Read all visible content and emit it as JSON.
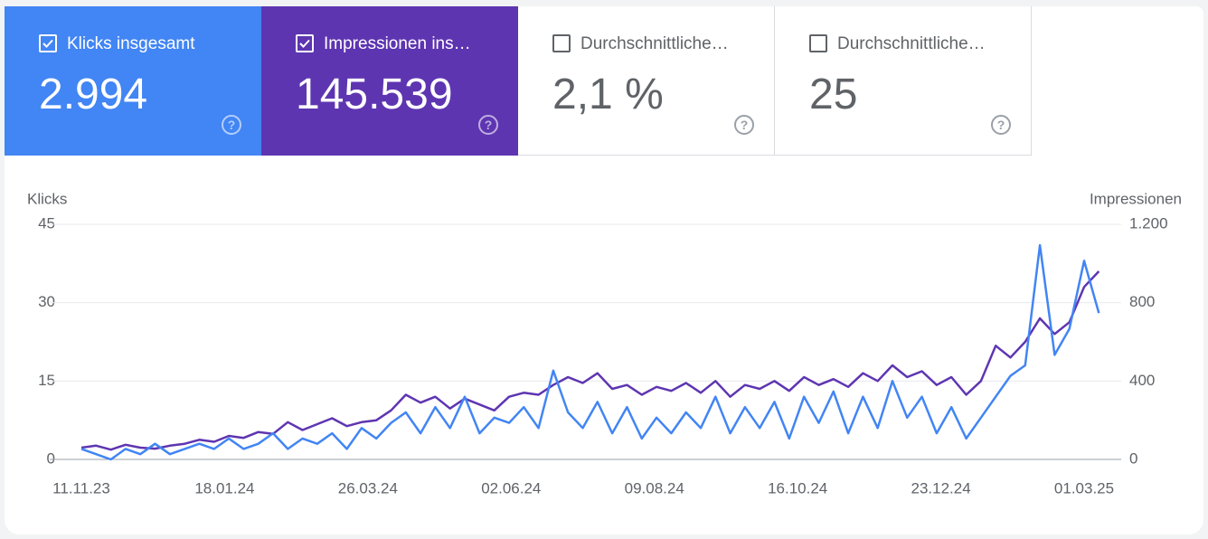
{
  "cards": [
    {
      "label": "Klicks insgesamt",
      "value": "2.994",
      "checked": true,
      "color": "#4285f4"
    },
    {
      "label": "Impressionen ins…",
      "value": "145.539",
      "checked": true,
      "color": "#5e35b1"
    },
    {
      "label": "Durchschnittliche…",
      "value": "2,1 %",
      "checked": false,
      "color": "#ffffff"
    },
    {
      "label": "Durchschnittliche…",
      "value": "25",
      "checked": false,
      "color": "#ffffff"
    }
  ],
  "chart_data": {
    "type": "line",
    "ylabel": "Klicks",
    "y2label": "Impressionen",
    "x": [
      "11.11.23",
      "18.11.23",
      "25.11.23",
      "02.12.23",
      "09.12.23",
      "16.12.23",
      "23.12.23",
      "30.12.23",
      "06.01.24",
      "13.01.24",
      "20.01.24",
      "27.01.24",
      "03.02.24",
      "10.02.24",
      "17.02.24",
      "24.02.24",
      "02.03.24",
      "09.03.24",
      "16.03.24",
      "23.03.24",
      "30.03.24",
      "06.04.24",
      "13.04.24",
      "20.04.24",
      "27.04.24",
      "04.05.24",
      "11.05.24",
      "18.05.24",
      "25.05.24",
      "01.06.24",
      "08.06.24",
      "15.06.24",
      "22.06.24",
      "29.06.24",
      "06.07.24",
      "13.07.24",
      "20.07.24",
      "27.07.24",
      "03.08.24",
      "10.08.24",
      "17.08.24",
      "24.08.24",
      "31.08.24",
      "07.09.24",
      "14.09.24",
      "21.09.24",
      "28.09.24",
      "05.10.24",
      "12.10.24",
      "19.10.24",
      "26.10.24",
      "02.11.24",
      "09.11.24",
      "16.11.24",
      "23.11.24",
      "30.11.24",
      "07.12.24",
      "14.12.24",
      "21.12.24",
      "28.12.24",
      "04.01.25",
      "11.01.25",
      "18.01.25",
      "25.01.25",
      "01.02.25",
      "08.02.25",
      "15.02.25",
      "22.02.25",
      "01.03.25",
      "08.03.25"
    ],
    "xlim": [
      "11.11.23",
      "10.03.25"
    ],
    "xticks": [
      "11.11.23",
      "18.01.24",
      "26.03.24",
      "02.06.24",
      "09.08.24",
      "16.10.24",
      "23.12.24",
      "01.03.25"
    ],
    "ylim": [
      0,
      45
    ],
    "yticks": [
      0,
      15,
      30,
      45
    ],
    "y2lim": [
      0,
      1200
    ],
    "y2ticks": [
      0,
      400,
      800,
      {
        "value": 1200,
        "label": "1.200"
      }
    ],
    "grid": true,
    "series": [
      {
        "name": "Impressionen",
        "color": "#5e35b1",
        "axis": "y2",
        "values": [
          60,
          70,
          50,
          75,
          60,
          55,
          70,
          80,
          100,
          90,
          120,
          110,
          140,
          130,
          190,
          150,
          180,
          210,
          170,
          190,
          200,
          250,
          330,
          290,
          320,
          260,
          310,
          280,
          250,
          320,
          340,
          330,
          380,
          420,
          390,
          440,
          360,
          380,
          330,
          370,
          350,
          390,
          340,
          400,
          320,
          380,
          360,
          400,
          350,
          420,
          380,
          410,
          370,
          440,
          400,
          480,
          420,
          450,
          380,
          420,
          330,
          400,
          580,
          520,
          600,
          720,
          640,
          700,
          880,
          960
        ]
      },
      {
        "name": "Klicks",
        "color": "#4285f4",
        "values": [
          2,
          1,
          0,
          2,
          1,
          3,
          1,
          2,
          3,
          2,
          4,
          2,
          3,
          5,
          2,
          4,
          3,
          5,
          2,
          6,
          4,
          7,
          9,
          5,
          10,
          6,
          12,
          5,
          8,
          7,
          10,
          6,
          17,
          9,
          6,
          11,
          5,
          10,
          4,
          8,
          5,
          9,
          6,
          12,
          5,
          10,
          6,
          11,
          4,
          12,
          7,
          13,
          5,
          12,
          6,
          15,
          8,
          12,
          5,
          10,
          4,
          8,
          12,
          16,
          18,
          41,
          20,
          25,
          38,
          28
        ]
      }
    ]
  }
}
